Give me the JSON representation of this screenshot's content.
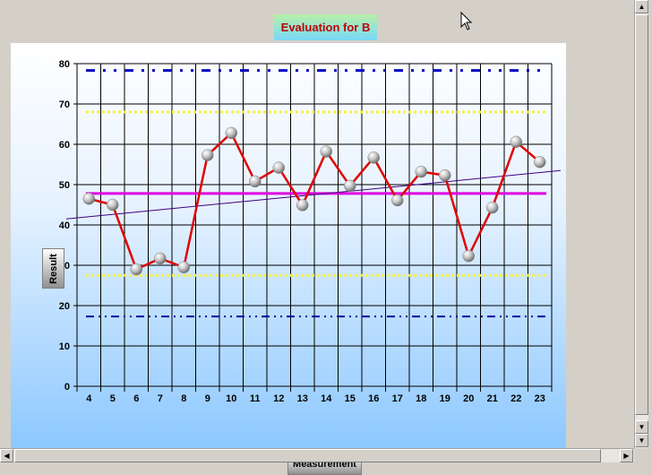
{
  "chart_data": {
    "type": "line",
    "title": "Evaluation for B",
    "xlabel": "Measurement",
    "ylabel": "Result",
    "categories": [
      "4",
      "5",
      "6",
      "7",
      "8",
      "9",
      "10",
      "11",
      "12",
      "13",
      "14",
      "15",
      "16",
      "17",
      "18",
      "19",
      "20",
      "21",
      "22",
      "23"
    ],
    "series": [
      {
        "values": [
          46.5,
          45,
          29,
          31.7,
          29.5,
          57.3,
          62.8,
          50.8,
          54.2,
          44.9,
          58.2,
          49.7,
          56.7,
          46.1,
          53.2,
          52.3,
          32.3,
          44.3,
          60.6,
          55.6
        ]
      }
    ],
    "trendline": {
      "start": 41.5,
      "end": 53.5
    },
    "reference_lines": [
      {
        "value": 78.3,
        "color": "#0000c0",
        "style": "dash-dot-dot-long"
      },
      {
        "value": 68.0,
        "color": "#f8f040",
        "style": "dotted"
      },
      {
        "value": 47.8,
        "color": "#e000e0",
        "style": "solid"
      },
      {
        "value": 27.5,
        "color": "#f8f040",
        "style": "dotted"
      },
      {
        "value": 17.3,
        "color": "#0000a0",
        "style": "dash-dot-dot"
      }
    ],
    "ylim": [
      0,
      80
    ],
    "yticks": [
      0,
      10,
      20,
      30,
      40,
      50,
      60,
      70,
      80
    ],
    "grid": true,
    "colors": {
      "line": "#e00000",
      "marker": "#c0c0c0",
      "trend": "#400080"
    }
  },
  "icons": {
    "cursor": "mouse-pointer-icon",
    "scroll_up": "arrow-up-icon",
    "scroll_down": "arrow-down-icon",
    "scroll_left": "arrow-left-icon",
    "scroll_right": "arrow-right-icon"
  }
}
